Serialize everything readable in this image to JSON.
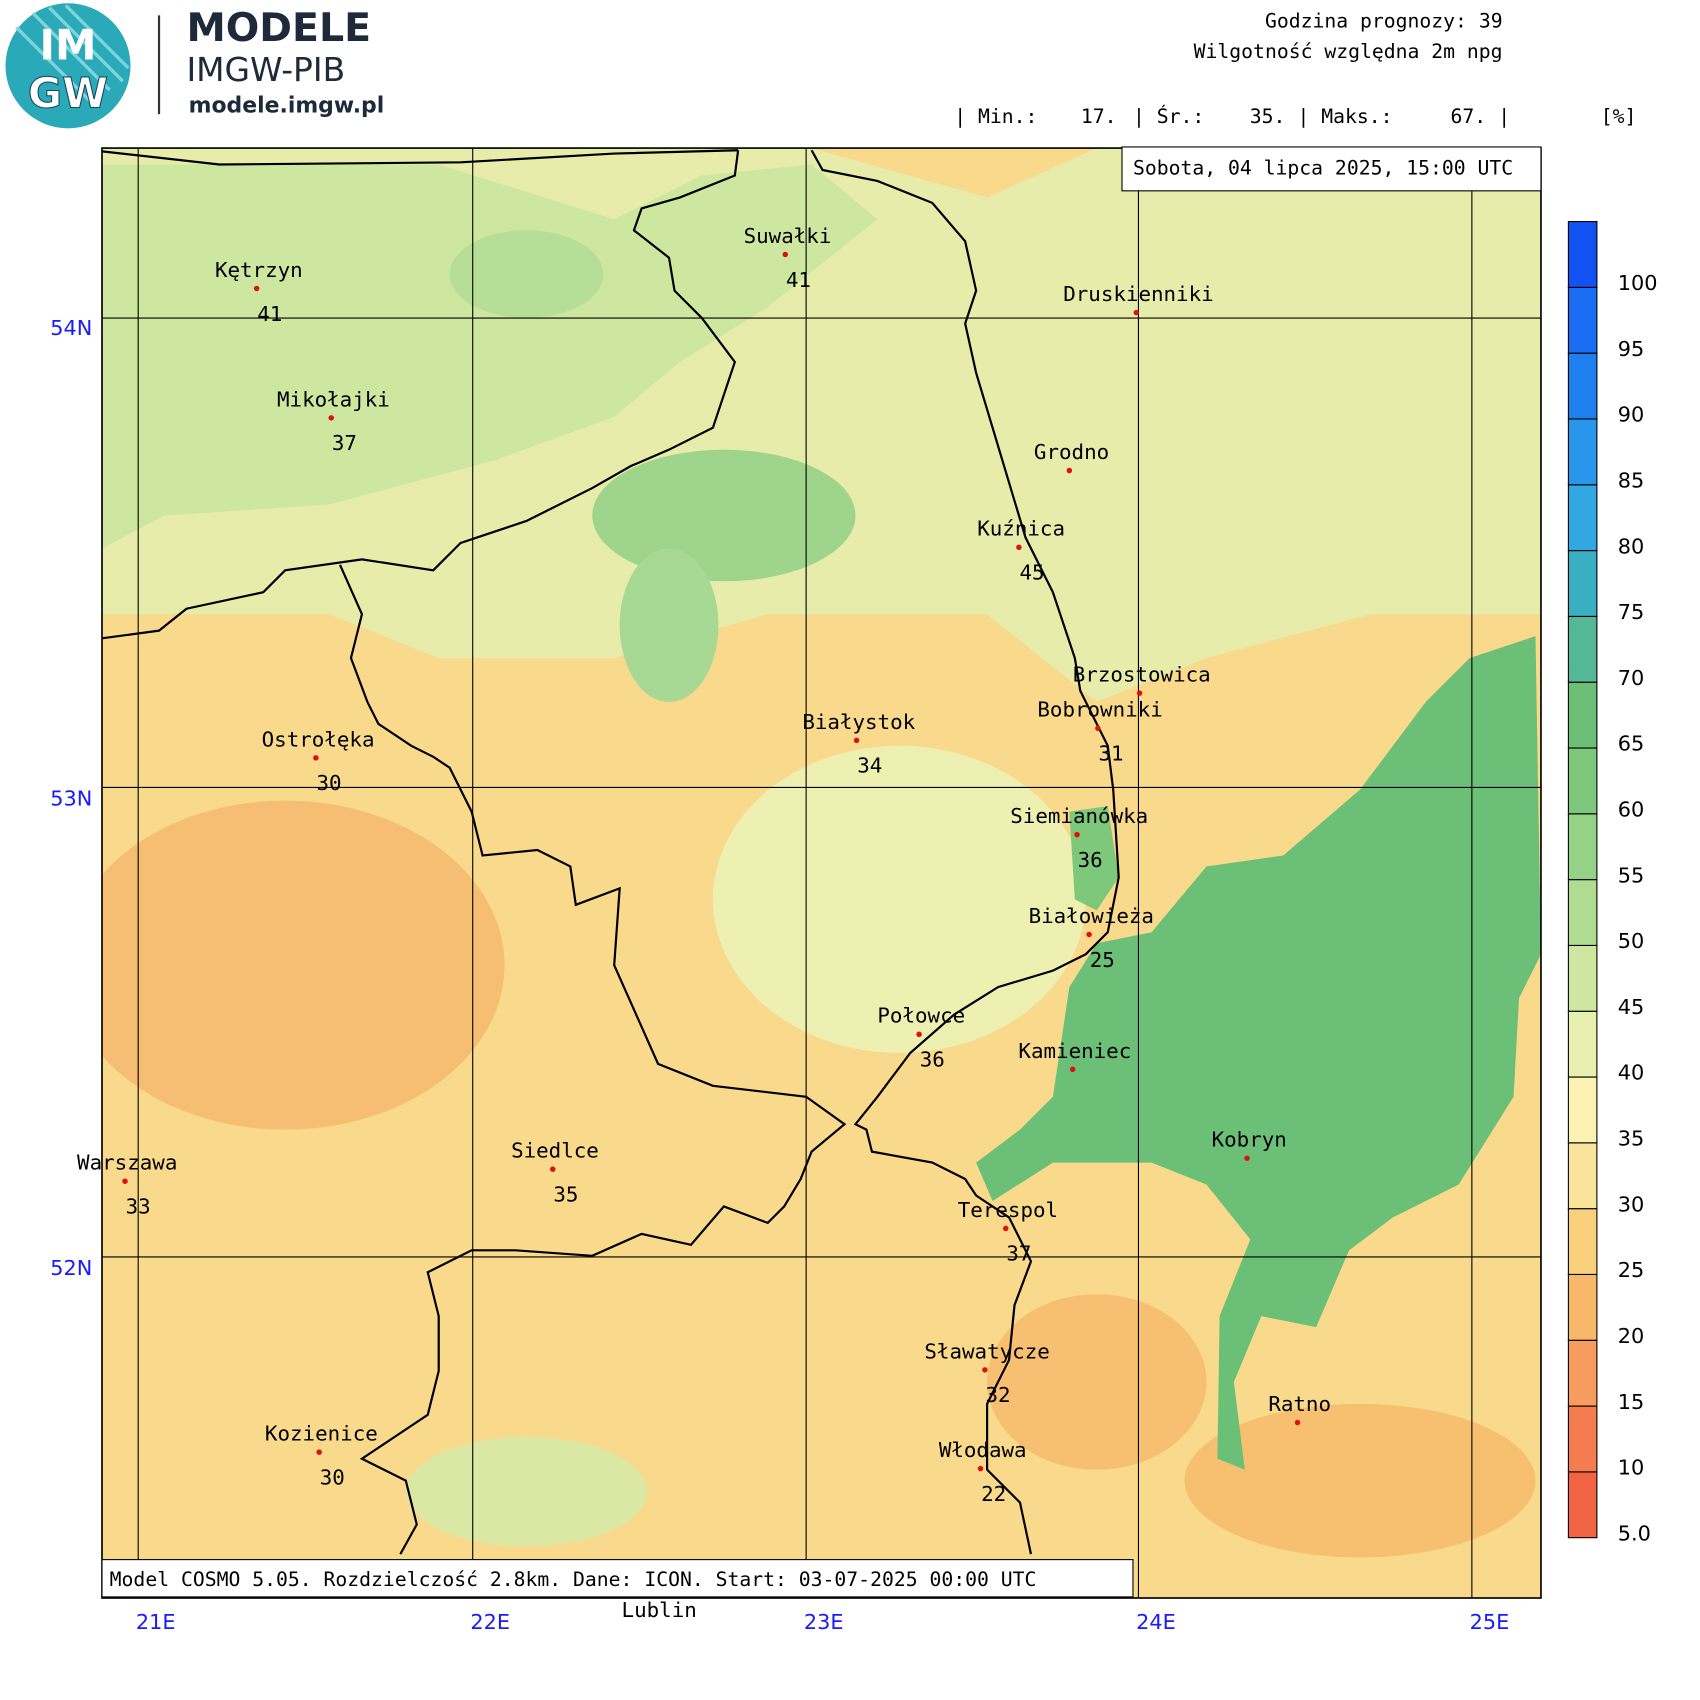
{
  "header": {
    "logo_top": "IM",
    "logo_bottom": "GW",
    "title": "MODELE",
    "subtitle": "IMGW-PIB",
    "url": "modele.imgw.pl",
    "forecast_hour": "Godzina prognozy: 39",
    "variable": "Wilgotność względna 2m npg",
    "stats": [
      "| Min.:",
      "17.",
      "| Śr.:",
      "35.",
      "| Maks.:",
      "67.",
      "|"
    ],
    "unit": "[%]"
  },
  "map": {
    "date": "Sobota, 04 lipca 2025, 15:00 UTC",
    "footer": "Model COSMO 5.05. Rozdzielczość 2.8km. Dane: ICON. Start: 03-07-2025 00:00 UTC",
    "lon_labels": [
      "21E",
      "22E",
      "23E",
      "24E",
      "25E"
    ],
    "lat_labels": [
      "54N",
      "53N",
      "52N"
    ],
    "cities": [
      {
        "name": "Kętrzyn",
        "value": 41
      },
      {
        "name": "Suwałki",
        "value": 41
      },
      {
        "name": "Druskienniki"
      },
      {
        "name": "Mikołajki",
        "value": 37
      },
      {
        "name": "Grodno"
      },
      {
        "name": "Kuźnica",
        "value": 45
      },
      {
        "name": "Brzostowica"
      },
      {
        "name": "Bobrowniki",
        "value": 31
      },
      {
        "name": "Białystok",
        "value": 34
      },
      {
        "name": "Ostrołęka",
        "value": 30
      },
      {
        "name": "Siemianówka",
        "value": 36
      },
      {
        "name": "Białowieża",
        "value": 25
      },
      {
        "name": "Połowce",
        "value": 36
      },
      {
        "name": "Kamieniec"
      },
      {
        "name": "Kobryn"
      },
      {
        "name": "Warszawa",
        "value": 33
      },
      {
        "name": "Siedlce",
        "value": 35
      },
      {
        "name": "Terespol",
        "value": 37
      },
      {
        "name": "Sławatycze",
        "value": 32
      },
      {
        "name": "Ratno"
      },
      {
        "name": "Kozienice",
        "value": 30
      },
      {
        "name": "Włodawa",
        "value": 22
      }
    ],
    "outside_label": "Lublin"
  },
  "colorbar": {
    "ticks": [
      {
        "value": 5,
        "label": "5.0"
      },
      10,
      15,
      20,
      25,
      30,
      35,
      40,
      45,
      50,
      55,
      60,
      65,
      70,
      75,
      80,
      85,
      90,
      95,
      100
    ],
    "colors": [
      "#f06444",
      "#f47c50",
      "#f69c5e",
      "#f8b86a",
      "#f9d07c",
      "#fae39a",
      "#fbf1b2",
      "#e8f0b0",
      "#cde6a0",
      "#b0dc92",
      "#94d286",
      "#7ec87c",
      "#6cbf77",
      "#54b896",
      "#3aaec2",
      "#32a8e2",
      "#2896ea",
      "#1e80ee",
      "#1a6cf2",
      "#1252f2"
    ]
  }
}
